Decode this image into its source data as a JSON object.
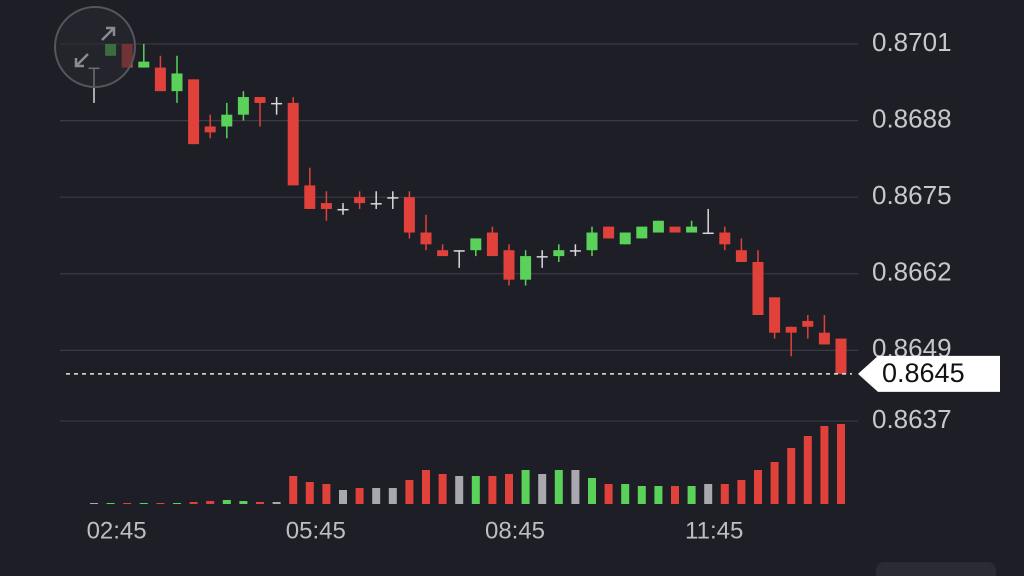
{
  "chart_data": {
    "type": "candlestick",
    "categories": [
      null,
      "02:45",
      null,
      null,
      null,
      null,
      null,
      null,
      null,
      null,
      null,
      null,
      null,
      "05:45",
      null,
      null,
      null,
      null,
      null,
      null,
      null,
      null,
      null,
      null,
      null,
      "08:45",
      null,
      null,
      null,
      null,
      null,
      null,
      null,
      null,
      null,
      null,
      null,
      "11:45",
      null,
      null,
      null,
      null,
      null,
      null,
      null,
      null
    ],
    "open": [
      0.8697,
      0.8699,
      0.8701,
      0.8697,
      0.8697,
      0.8693,
      0.8695,
      0.8687,
      0.8687,
      0.8689,
      0.8692,
      0.8691,
      0.8691,
      0.8677,
      0.8674,
      0.8673,
      0.8675,
      0.8674,
      0.8675,
      0.8675,
      0.8669,
      0.8666,
      0.8666,
      0.8666,
      0.8669,
      0.8666,
      0.8661,
      0.8665,
      0.8665,
      0.8666,
      0.8666,
      0.867,
      0.8667,
      0.8668,
      0.8669,
      0.867,
      0.8669,
      0.8669,
      0.8669,
      0.8666,
      0.8664,
      0.8658,
      0.8653,
      0.8654,
      0.8652,
      0.8651
    ],
    "high": [
      0.8697,
      0.8701,
      0.8701,
      0.8701,
      0.8699,
      0.8699,
      0.8695,
      0.8689,
      0.8691,
      0.8693,
      0.8692,
      0.8692,
      0.8692,
      0.868,
      0.8676,
      0.8674,
      0.8676,
      0.8676,
      0.8676,
      0.8676,
      0.8672,
      0.8667,
      0.8666,
      0.8668,
      0.867,
      0.8667,
      0.8666,
      0.8666,
      0.8667,
      0.8667,
      0.867,
      0.867,
      0.8669,
      0.867,
      0.8671,
      0.867,
      0.8671,
      0.8673,
      0.867,
      0.8668,
      0.8666,
      0.8658,
      0.8653,
      0.8655,
      0.8655,
      0.8651
    ],
    "low": [
      0.8691,
      0.8699,
      0.8697,
      0.8697,
      0.8693,
      0.8691,
      0.8684,
      0.8685,
      0.8685,
      0.8688,
      0.8687,
      0.8689,
      0.8677,
      0.8673,
      0.8671,
      0.8672,
      0.8673,
      0.8673,
      0.8673,
      0.8668,
      0.8666,
      0.8665,
      0.8663,
      0.8665,
      0.8665,
      0.866,
      0.866,
      0.8663,
      0.8664,
      0.8665,
      0.8665,
      0.8668,
      0.8667,
      0.8668,
      0.8669,
      0.8669,
      0.8669,
      0.8669,
      0.8666,
      0.8664,
      0.8655,
      0.8651,
      0.8648,
      0.8651,
      0.865,
      0.8645
    ],
    "close": [
      0.8697,
      0.8701,
      0.8697,
      0.8698,
      0.8693,
      0.8696,
      0.8684,
      0.8686,
      0.8689,
      0.8692,
      0.8691,
      0.8691,
      0.8677,
      0.8673,
      0.8673,
      0.8673,
      0.8674,
      0.8674,
      0.8675,
      0.8669,
      0.8667,
      0.8665,
      0.8666,
      0.8668,
      0.8665,
      0.8661,
      0.8665,
      0.8665,
      0.8666,
      0.8666,
      0.8669,
      0.8668,
      0.8669,
      0.867,
      0.8671,
      0.8669,
      0.867,
      0.8669,
      0.8667,
      0.8664,
      0.8655,
      0.8652,
      0.8652,
      0.8653,
      0.865,
      0.8645
    ],
    "volume": [
      1,
      1,
      1,
      1,
      1,
      1,
      2,
      3,
      4,
      3,
      2,
      2,
      28,
      22,
      20,
      14,
      16,
      16,
      16,
      24,
      34,
      30,
      28,
      28,
      28,
      30,
      34,
      30,
      34,
      34,
      26,
      20,
      20,
      18,
      18,
      18,
      18,
      20,
      20,
      24,
      34,
      42,
      56,
      68,
      78,
      80
    ],
    "up_color": "#5ad25a",
    "down_color": "#e0413a",
    "flat_color": "#a8a8ae",
    "ylim": [
      0.86365,
      0.8701
    ],
    "yticks": [
      0.8701,
      0.8688,
      0.8675,
      0.8662,
      0.8649,
      0.8637
    ],
    "grid": true,
    "last_price": 0.8645
  }
}
